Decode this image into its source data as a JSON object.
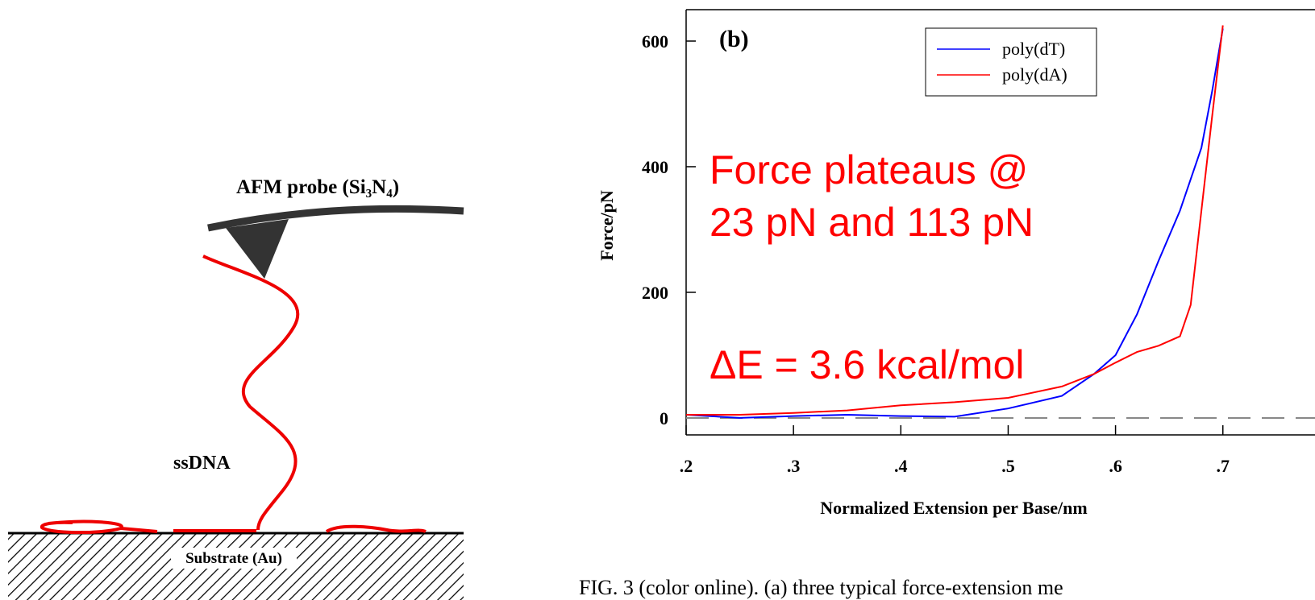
{
  "diagram": {
    "probe_label": "AFM probe (Si₃N₄)",
    "dna_label": "ssDNA",
    "substrate_label": "Substrate (Au)"
  },
  "chart_data": {
    "type": "line",
    "annotations": [
      "(b)",
      "Force plateaus @",
      "23 pN and 113 pN",
      "ΔE = 3.6 kcal/mol"
    ],
    "xlabel": "Normalized Extension per Base/nm",
    "ylabel": "Force/pN",
    "x": [
      0.2,
      0.25,
      0.3,
      0.35,
      0.4,
      0.45,
      0.5,
      0.55,
      0.58,
      0.6,
      0.62,
      0.64,
      0.66,
      0.67,
      0.68,
      0.69,
      0.7
    ],
    "series": [
      {
        "name": "poly(dT)",
        "color": "#0000ff",
        "values": [
          5,
          0,
          3,
          5,
          3,
          2,
          15,
          35,
          70,
          100,
          165,
          250,
          330,
          380,
          430,
          520,
          620
        ]
      },
      {
        "name": "poly(dA)",
        "color": "#ff0000",
        "values": [
          5,
          5,
          8,
          12,
          20,
          25,
          32,
          50,
          70,
          88,
          105,
          115,
          130,
          180,
          330,
          480,
          625
        ]
      }
    ],
    "xlim": [
      0.2,
      0.74
    ],
    "ylim": [
      -27,
      650
    ],
    "xticks": [
      {
        "value": 0.2,
        "label": ".2"
      },
      {
        "value": 0.3,
        "label": ".3"
      },
      {
        "value": 0.4,
        "label": ".4"
      },
      {
        "value": 0.5,
        "label": ".5"
      },
      {
        "value": 0.6,
        "label": ".6"
      },
      {
        "value": 0.7,
        "label": ".7"
      }
    ],
    "yticks": [
      0,
      200,
      400,
      600
    ],
    "reference_line": 0,
    "legend": "upper right"
  },
  "caption": "FIG. 3 (color online).   (a) three typical force-extension me"
}
